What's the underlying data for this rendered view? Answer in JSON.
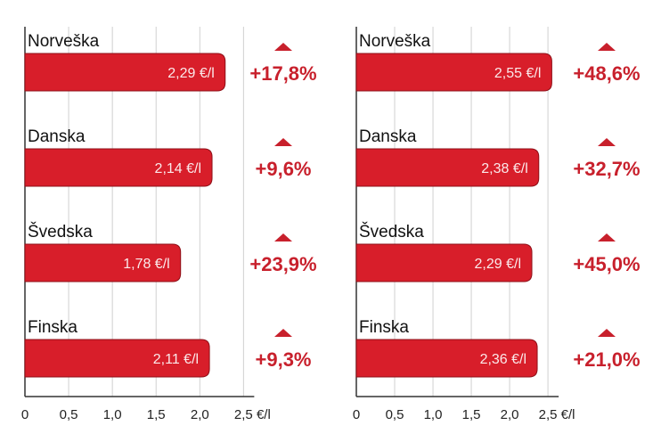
{
  "chart_data": [
    {
      "type": "bar",
      "orientation": "horizontal",
      "categories": [
        "Norveška",
        "Danska",
        "Švedska",
        "Finska"
      ],
      "values": [
        2.29,
        2.14,
        1.78,
        2.11
      ],
      "value_labels": [
        "2,29 €/l",
        "2,14 €/l",
        "1,78 €/l",
        "2,11 €/l"
      ],
      "changes": [
        "+17,8%",
        "+9,6%",
        "+23,9%",
        "+9,3%"
      ],
      "change_direction": "up",
      "xticks": [
        0,
        0.5,
        1.0,
        1.5,
        2.0,
        2.5
      ],
      "xtick_labels": [
        "0",
        "0,5",
        "1,0",
        "1,5",
        "2,0",
        "2,5 €/l"
      ],
      "xlim": [
        0,
        2.7
      ],
      "grid": true
    },
    {
      "type": "bar",
      "orientation": "horizontal",
      "categories": [
        "Norveška",
        "Danska",
        "Švedska",
        "Finska"
      ],
      "values": [
        2.55,
        2.38,
        2.29,
        2.36
      ],
      "value_labels": [
        "2,55 €/l",
        "2,38 €/l",
        "2,29 €/l",
        "2,36 €/l"
      ],
      "changes": [
        "+48,6%",
        "+32,7%",
        "+45,0%",
        "+21,0%"
      ],
      "change_direction": "up",
      "xticks": [
        0,
        0.5,
        1.0,
        1.5,
        2.0,
        2.5
      ],
      "xtick_labels": [
        "0",
        "0,5",
        "1,0",
        "1,5",
        "2,0",
        "2,5 €/l"
      ],
      "xlim": [
        0,
        2.65
      ],
      "grid": true
    }
  ],
  "colors": {
    "bar": "#d81e2a",
    "bar_edge": "#8e1018",
    "change": "#c8202c",
    "grid": "#d0d0d0",
    "axis": "#333333"
  }
}
